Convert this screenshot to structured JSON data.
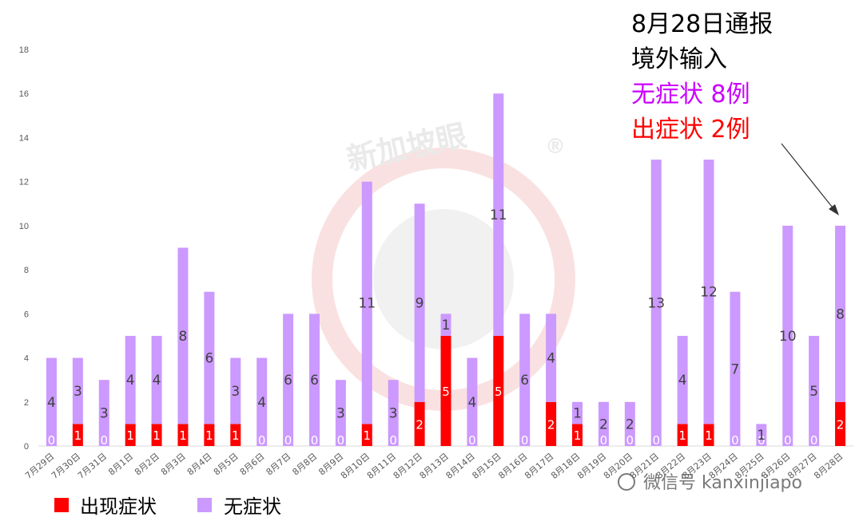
{
  "chart_data": {
    "type": "bar",
    "stacked": true,
    "categories": [
      "7月29日",
      "7月30日",
      "7月31日",
      "8月1日",
      "8月2日",
      "8月3日",
      "8月4日",
      "8月5日",
      "8月6日",
      "8月7日",
      "8月8日",
      "8月9日",
      "8月10日",
      "8月11日",
      "8月12日",
      "8月13日",
      "8月14日",
      "8月15日",
      "8月16日",
      "8月17日",
      "8月18日",
      "8月19日",
      "8月20日",
      "8月21日",
      "8月22日",
      "8月23日",
      "8月24日",
      "8月25日",
      "8月26日",
      "8月27日",
      "8月28日"
    ],
    "series": [
      {
        "name": "出现症状",
        "color": "#ff0000",
        "values": [
          0,
          1,
          0,
          1,
          1,
          1,
          1,
          1,
          0,
          0,
          0,
          0,
          1,
          0,
          2,
          5,
          0,
          5,
          0,
          2,
          1,
          0,
          0,
          0,
          1,
          1,
          0,
          0,
          0,
          0,
          2
        ]
      },
      {
        "name": "无症状",
        "color": "#cc99ff",
        "values": [
          4,
          3,
          3,
          4,
          4,
          8,
          6,
          3,
          4,
          6,
          6,
          3,
          11,
          3,
          9,
          1,
          4,
          11,
          6,
          4,
          1,
          2,
          2,
          13,
          4,
          12,
          7,
          1,
          10,
          5,
          8
        ]
      }
    ],
    "ylim": [
      0,
      18
    ],
    "yticks": [
      0,
      2,
      4,
      6,
      8,
      10,
      12,
      14,
      16,
      18
    ],
    "grid": false,
    "legend_position": "bottom-left",
    "annotation": {
      "line1": "8月28日通报",
      "line2": "境外输入",
      "line3": "无症状 8例",
      "line4": "出症状 2例",
      "line3_color": "#cc00ff",
      "line4_color": "#ff0000"
    }
  },
  "watermark": {
    "text": "新加坡眼",
    "mark": "®",
    "footer": "微信号 kanxinjiapo"
  }
}
